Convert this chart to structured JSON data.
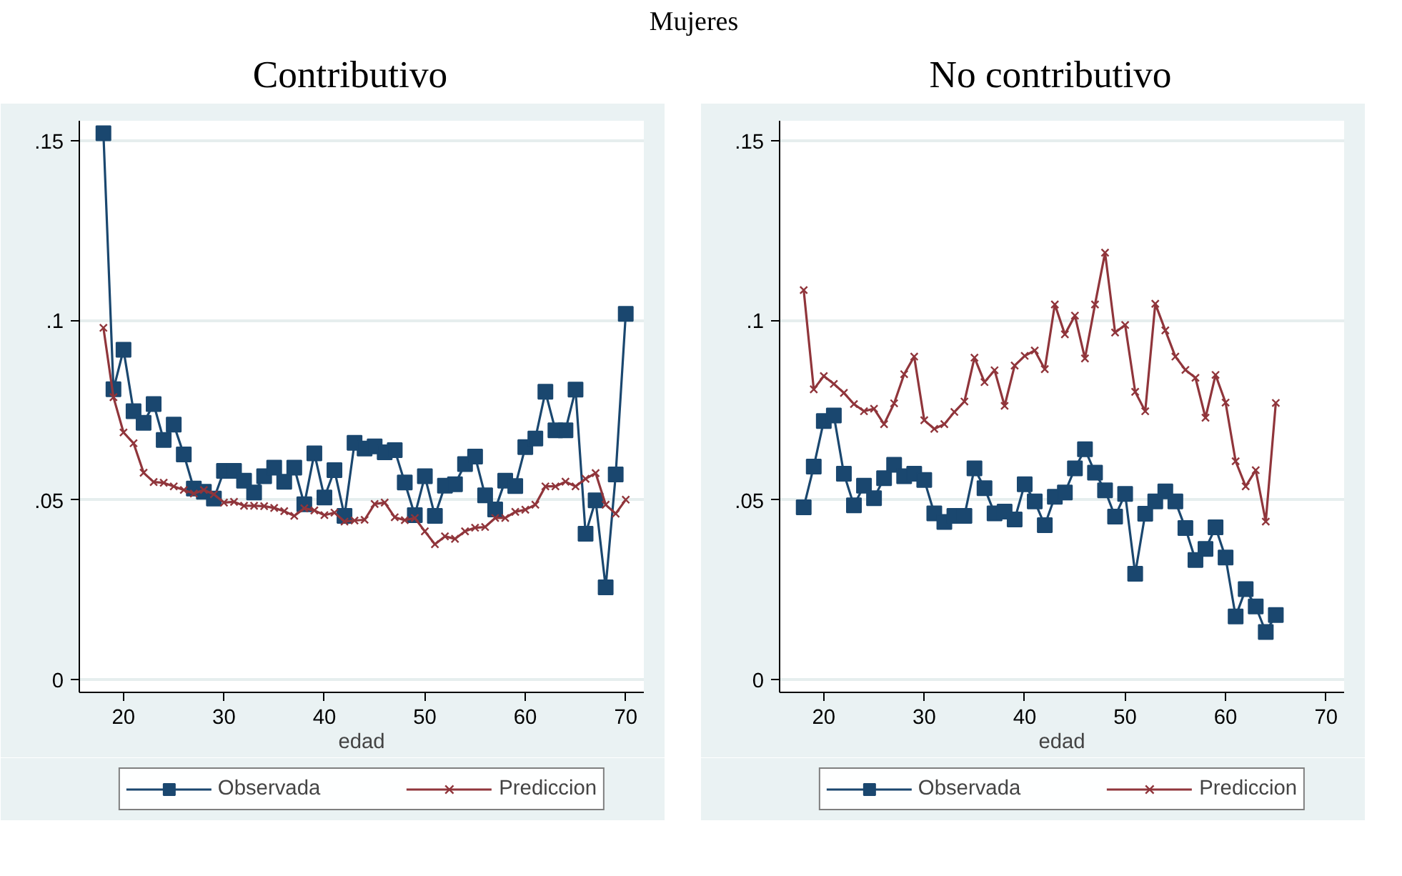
{
  "chart_data": [
    {
      "type": "line",
      "title": "Contributivo",
      "annotations": [
        "Mujeres"
      ],
      "xlabel": "edad",
      "x": [
        18,
        19,
        20,
        21,
        22,
        23,
        24,
        25,
        26,
        27,
        28,
        29,
        30,
        31,
        32,
        33,
        34,
        35,
        36,
        37,
        38,
        39,
        40,
        41,
        42,
        43,
        44,
        45,
        46,
        47,
        48,
        49,
        50,
        51,
        52,
        53,
        54,
        55,
        56,
        57,
        58,
        59,
        60,
        61,
        62,
        63,
        64,
        65,
        66,
        67,
        68,
        69,
        70
      ],
      "series": [
        {
          "name": "Observada",
          "color": "#1a476f",
          "marker": "square",
          "values": [
            0.152,
            0.0808,
            0.0918,
            0.0747,
            0.0715,
            0.0767,
            0.0667,
            0.071,
            0.0627,
            0.0532,
            0.0523,
            0.0504,
            0.0581,
            0.0581,
            0.0554,
            0.0521,
            0.0566,
            0.059,
            0.0551,
            0.059,
            0.0488,
            0.063,
            0.0507,
            0.0583,
            0.0456,
            0.0659,
            0.0643,
            0.0649,
            0.0633,
            0.0639,
            0.0549,
            0.0458,
            0.0566,
            0.0456,
            0.054,
            0.0544,
            0.06,
            0.0621,
            0.0513,
            0.0474,
            0.0554,
            0.0539,
            0.0647,
            0.0671,
            0.0801,
            0.0694,
            0.0694,
            0.0807,
            0.0406,
            0.0499,
            0.0257,
            0.0571,
            0.1018
          ]
        },
        {
          "name": "Prediccion",
          "color": "#90353b",
          "marker": "cross",
          "values": [
            0.0979,
            0.0786,
            0.0688,
            0.0658,
            0.0576,
            0.055,
            0.0548,
            0.0538,
            0.0528,
            0.0518,
            0.0528,
            0.0516,
            0.0493,
            0.0495,
            0.0484,
            0.0484,
            0.0483,
            0.0478,
            0.0469,
            0.0456,
            0.0477,
            0.0471,
            0.0458,
            0.0465,
            0.044,
            0.0443,
            0.0445,
            0.0489,
            0.0493,
            0.0452,
            0.0444,
            0.045,
            0.0413,
            0.0377,
            0.0399,
            0.0392,
            0.0413,
            0.0423,
            0.0425,
            0.045,
            0.045,
            0.0467,
            0.0473,
            0.0487,
            0.0538,
            0.0538,
            0.0551,
            0.0538,
            0.0559,
            0.0575,
            0.0487,
            0.0462,
            0.0501
          ]
        }
      ],
      "xlim": [
        15.6,
        71.8
      ],
      "xticks": [
        20,
        30,
        40,
        50,
        60,
        70
      ],
      "ylim": [
        -0.0035,
        0.1555
      ],
      "yticks": [
        {
          "value": 0,
          "label": "0"
        },
        {
          "value": 0.05,
          "label": ".05"
        },
        {
          "value": 0.1,
          "label": ".1"
        },
        {
          "value": 0.15,
          "label": ".15"
        }
      ],
      "grid": "y",
      "legend": "bottom"
    },
    {
      "type": "line",
      "title": "No contributivo",
      "xlabel": "edad",
      "x": [
        18,
        19,
        20,
        21,
        22,
        23,
        24,
        25,
        26,
        27,
        28,
        29,
        30,
        31,
        32,
        33,
        34,
        35,
        36,
        37,
        38,
        39,
        40,
        41,
        42,
        43,
        44,
        45,
        46,
        47,
        48,
        49,
        50,
        51,
        52,
        53,
        54,
        55,
        56,
        57,
        58,
        59,
        60,
        61,
        62,
        63,
        64,
        65
      ],
      "series": [
        {
          "name": "Observada",
          "color": "#1a476f",
          "marker": "square",
          "values": [
            0.048,
            0.0593,
            0.072,
            0.0735,
            0.0573,
            0.0485,
            0.054,
            0.0505,
            0.0561,
            0.0598,
            0.0566,
            0.0573,
            0.0556,
            0.0463,
            0.0439,
            0.0456,
            0.0456,
            0.0588,
            0.0533,
            0.0463,
            0.0468,
            0.0446,
            0.0544,
            0.0496,
            0.043,
            0.0509,
            0.0521,
            0.0588,
            0.0641,
            0.0576,
            0.0527,
            0.0454,
            0.0517,
            0.0295,
            0.0462,
            0.0496,
            0.0524,
            0.0496,
            0.0422,
            0.0333,
            0.0364,
            0.0424,
            0.034,
            0.0176,
            0.0252,
            0.0204,
            0.0133,
            0.018
          ]
        },
        {
          "name": "Prediccion",
          "color": "#90353b",
          "marker": "cross",
          "values": [
            0.1084,
            0.0808,
            0.0845,
            0.0823,
            0.0798,
            0.0767,
            0.0747,
            0.0754,
            0.0711,
            0.0769,
            0.085,
            0.0899,
            0.0722,
            0.0698,
            0.0711,
            0.0745,
            0.0774,
            0.0896,
            0.0828,
            0.0861,
            0.0762,
            0.0874,
            0.0901,
            0.0916,
            0.0864,
            0.1044,
            0.0961,
            0.1013,
            0.0894,
            0.1044,
            0.1188,
            0.0966,
            0.0987,
            0.0801,
            0.0747,
            0.1046,
            0.0972,
            0.0899,
            0.0862,
            0.084,
            0.0729,
            0.0848,
            0.0771,
            0.0608,
            0.0538,
            0.0583,
            0.044,
            0.077
          ]
        }
      ],
      "xlim": [
        15.6,
        71.8
      ],
      "xticks": [
        20,
        30,
        40,
        50,
        60,
        70
      ],
      "ylim": [
        -0.0035,
        0.1555
      ],
      "yticks": [
        {
          "value": 0,
          "label": "0"
        },
        {
          "value": 0.05,
          "label": ".05"
        },
        {
          "value": 0.1,
          "label": ".1"
        },
        {
          "value": 0.15,
          "label": ".15"
        }
      ],
      "grid": "y",
      "legend": "bottom"
    }
  ]
}
